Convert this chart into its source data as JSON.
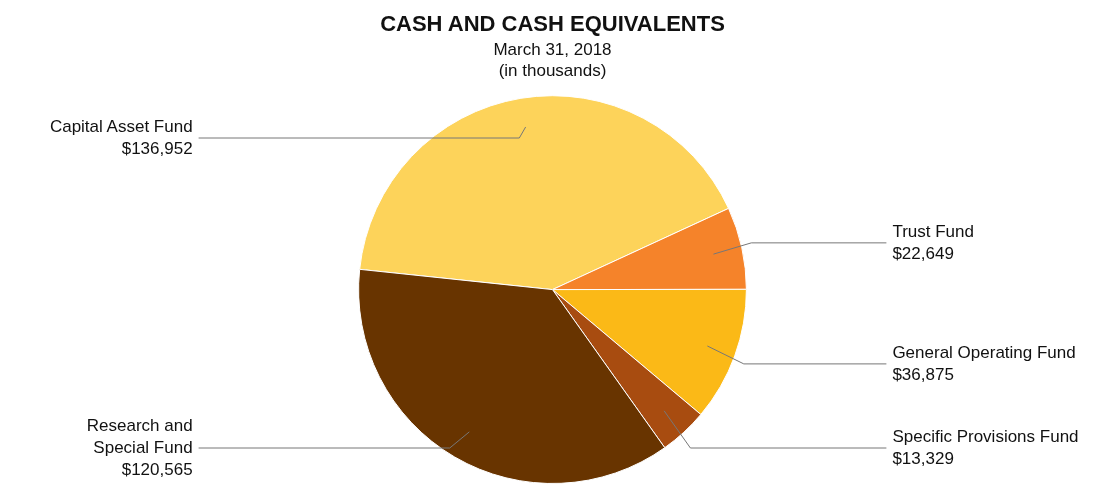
{
  "chart_data": {
    "type": "pie",
    "title": "CASH AND CASH EQUIVALENTS",
    "subtitle": "March 31, 2018\n(in thousands)",
    "categories": [
      "Capital Asset Fund",
      "Trust Fund",
      "General Operating Fund",
      "Specific Provisions Fund",
      "Research and Special Fund"
    ],
    "values": [
      136952,
      22649,
      36875,
      13329,
      120565
    ],
    "value_labels": [
      "$136,952",
      "$22,649",
      "$36,875",
      "$13,329",
      "$120,565"
    ],
    "colors": [
      "#fdd35a",
      "#f5832a",
      "#fbb917",
      "#a84c10",
      "#683400"
    ],
    "legend": false
  }
}
